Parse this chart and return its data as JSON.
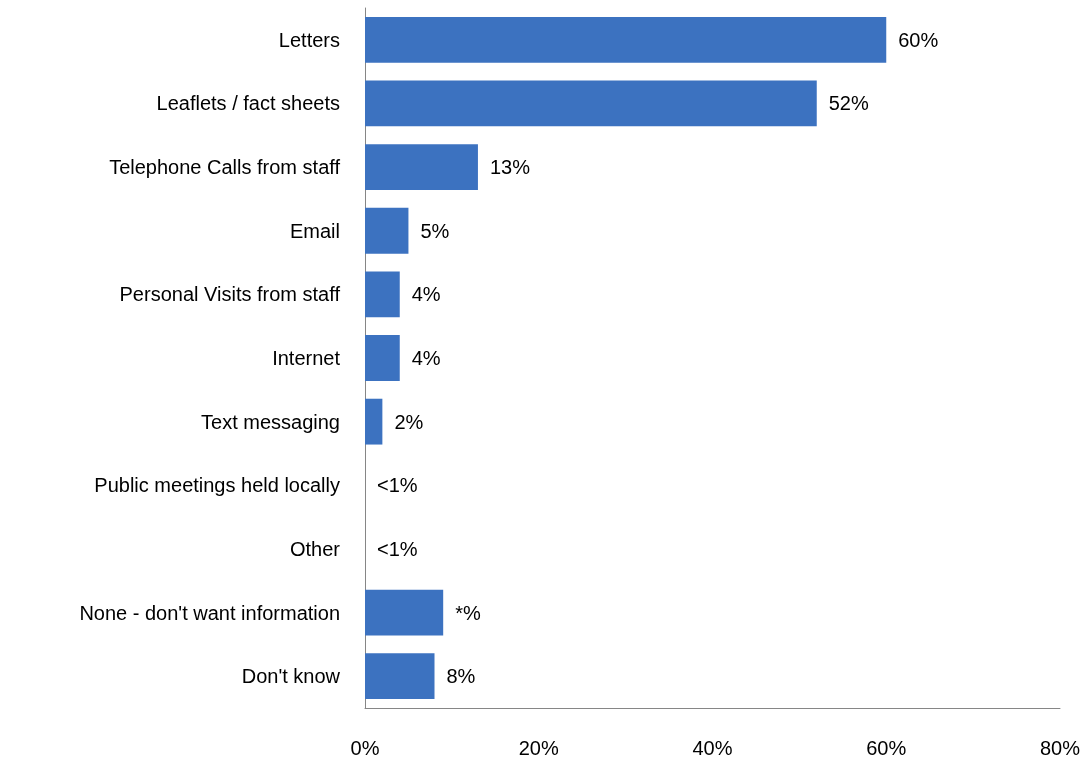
{
  "chart_data": {
    "type": "bar",
    "orientation": "horizontal",
    "categories": [
      "Letters",
      "Leaflets / fact sheets",
      "Telephone Calls from staff",
      "Email",
      "Personal Visits from staff",
      "Internet",
      "Text messaging",
      "Public meetings held locally",
      "Other",
      "None - don't want information",
      "Don't know"
    ],
    "values": [
      60,
      52,
      13,
      5,
      4,
      4,
      2,
      0,
      0,
      9,
      8
    ],
    "value_labels": [
      "60%",
      "52%",
      "13%",
      "5%",
      "4%",
      "4%",
      "2%",
      "<1%",
      "<1%",
      "*%",
      "8%"
    ],
    "color": "#3c72c0",
    "xlim": [
      0,
      80
    ],
    "xticks": [
      {
        "value": 0,
        "label": "0%"
      },
      {
        "value": 20,
        "label": "20%"
      },
      {
        "value": 40,
        "label": "40%"
      },
      {
        "value": 60,
        "label": "60%"
      },
      {
        "value": 80,
        "label": "80%"
      }
    ],
    "grid": false
  }
}
